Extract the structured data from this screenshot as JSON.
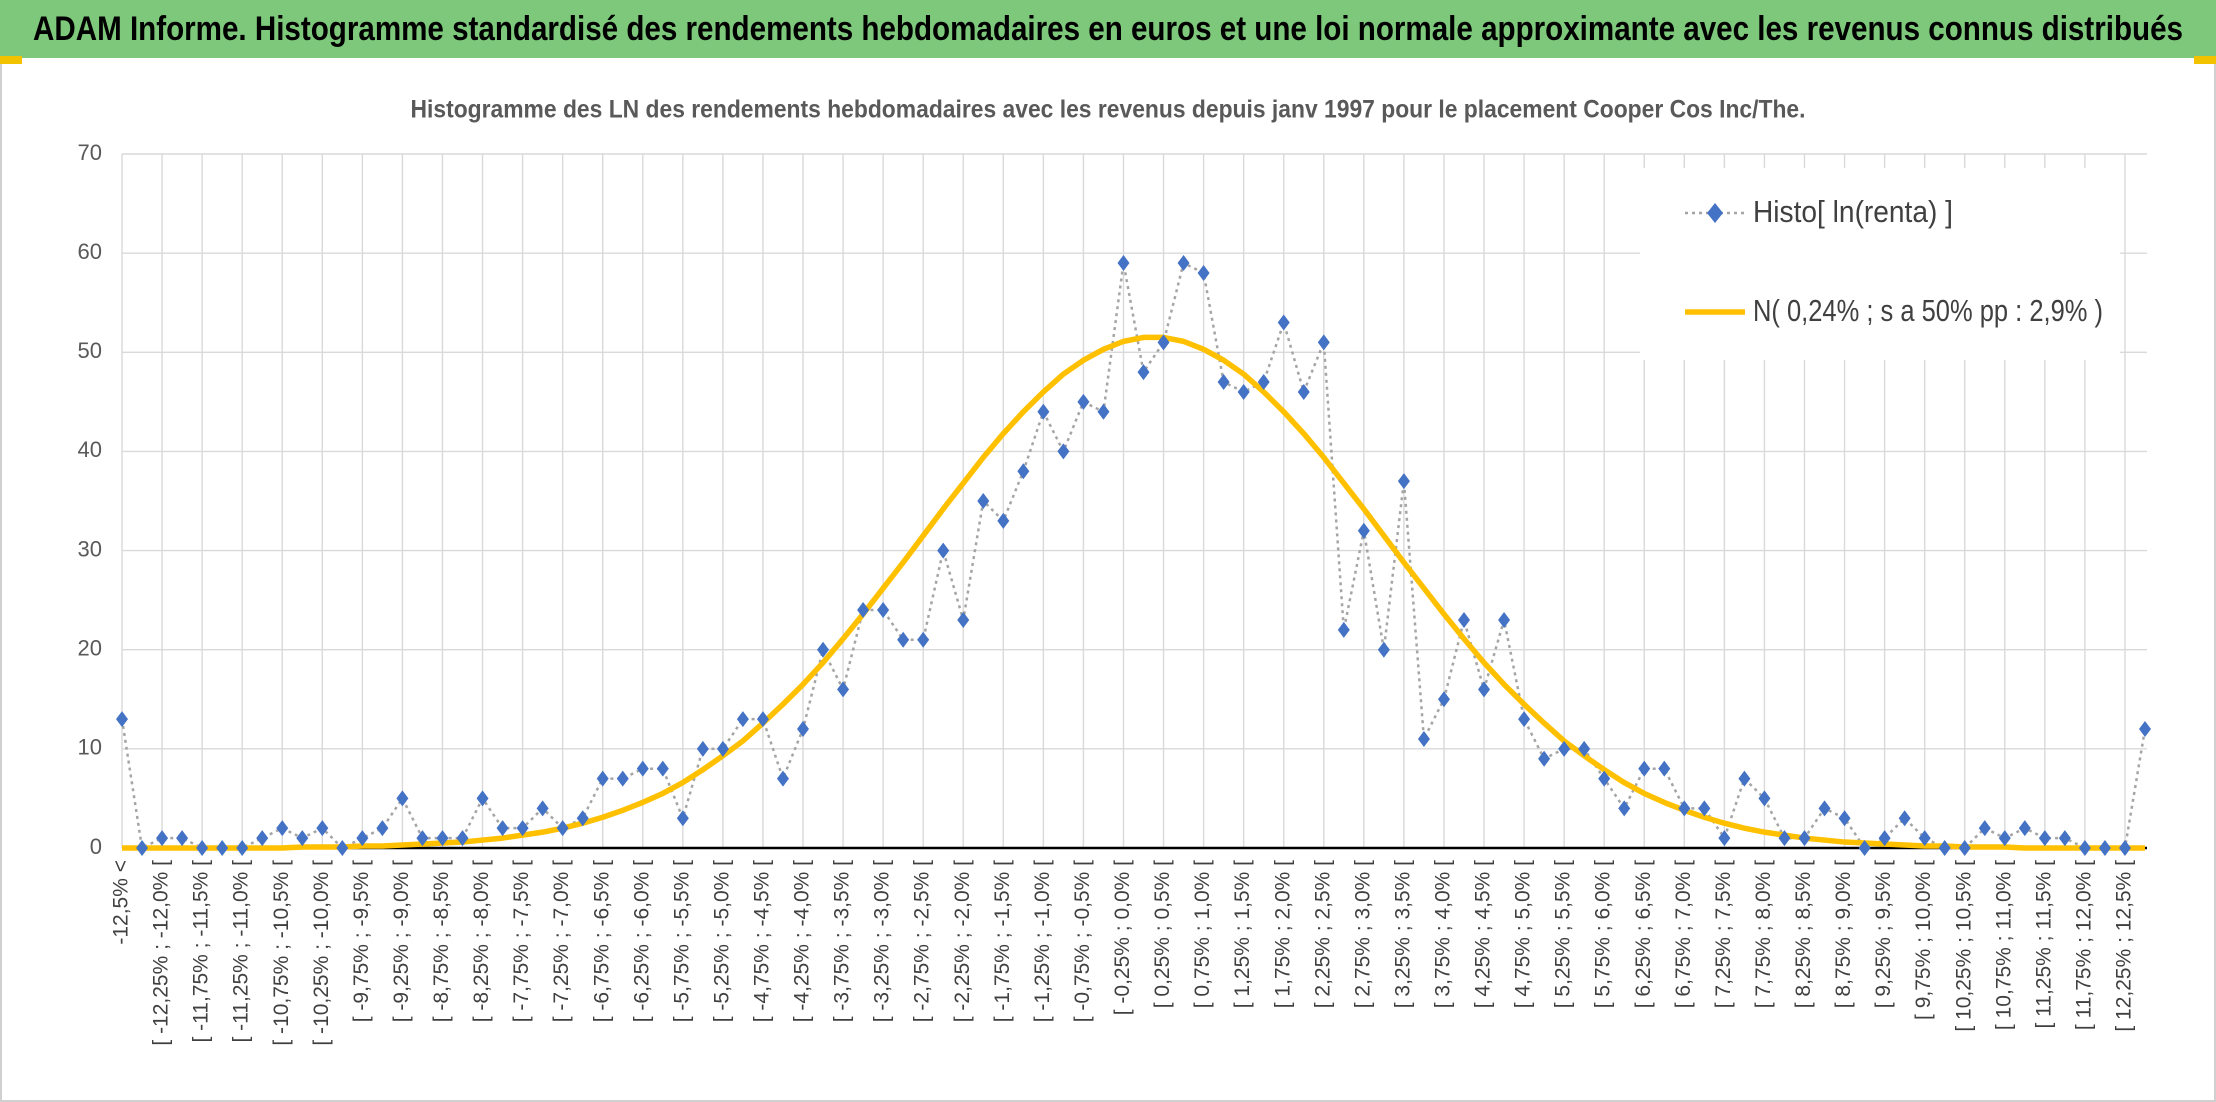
{
  "chart_data": {
    "type": "line",
    "title": "ADAM Informe. Histogramme standardisé des rendements hebdomadaires en euros et une loi normale approximante avec les revenus connus distribués",
    "subtitle": "Histogramme des LN des rendements hebdomadaires avec les revenus depuis janv 1997 pour le placement Cooper Cos Inc/The.",
    "categories": [
      "-12,5% <",
      null,
      "[ -12,25% ; -12,0% [",
      null,
      "[ -11,75% ; -11,5% [",
      null,
      "[ -11,25% ; -11,0% [",
      null,
      "[ -10,75% ; -10,5% [",
      null,
      "[ -10,25% ; -10,0% [",
      null,
      "[ -9,75% ; -9,5% [",
      null,
      "[ -9,25% ; -9,0% [",
      null,
      "[ -8,75% ; -8,5% [",
      null,
      "[ -8,25% ; -8,0% [",
      null,
      "[ -7,75% ; -7,5% [",
      null,
      "[ -7,25% ; -7,0% [",
      null,
      "[ -6,75% ; -6,5% [",
      null,
      "[ -6,25% ; -6,0% [",
      null,
      "[ -5,75% ; -5,5% [",
      null,
      "[ -5,25% ; -5,0% [",
      null,
      "[ -4,75% ; -4,5% [",
      null,
      "[ -4,25% ; -4,0% [",
      null,
      "[ -3,75% ; -3,5% [",
      null,
      "[ -3,25% ; -3,0% [",
      null,
      "[ -2,75% ; -2,5% [",
      null,
      "[ -2,25% ; -2,0% [",
      null,
      "[ -1,75% ; -1,5% [",
      null,
      "[ -1,25% ; -1,0% [",
      null,
      "[ -0,75% ; -0,5% [",
      null,
      "[ -0,25% ; 0,0% [",
      null,
      "[ 0,25% ; 0,5% [",
      null,
      "[ 0,75% ; 1,0% [",
      null,
      "[ 1,25% ; 1,5% [",
      null,
      "[ 1,75% ; 2,0% [",
      null,
      "[ 2,25% ; 2,5% [",
      null,
      "[ 2,75% ; 3,0% [",
      null,
      "[ 3,25% ; 3,5% [",
      null,
      "[ 3,75% ; 4,0% [",
      null,
      "[ 4,25% ; 4,5% [",
      null,
      "[ 4,75% ; 5,0% [",
      null,
      "[ 5,25% ; 5,5% [",
      null,
      "[ 5,75% ; 6,0% [",
      null,
      "[ 6,25% ; 6,5% [",
      null,
      "[ 6,75% ; 7,0% [",
      null,
      "[ 7,25% ; 7,5% [",
      null,
      "[ 7,75% ; 8,0% [",
      null,
      "[ 8,25% ; 8,5% [",
      null,
      "[ 8,75% ; 9,0% [",
      null,
      "[ 9,25% ; 9,5% [",
      null,
      "[ 9,75% ; 10,0% [",
      null,
      "[ 10,25% ; 10,5% [",
      null,
      "[ 10,75% ; 11,0% [",
      null,
      "[ 11,25% ; 11,5% [",
      null,
      "[ 11,75% ; 12,0% [",
      null,
      "[ 12,25% ; 12,5% [",
      null
    ],
    "series": [
      {
        "name": "Histo[ ln(renta) ]",
        "color": "#4472c4",
        "line_color": "#a5a5a5",
        "values": [
          13,
          0,
          1,
          1,
          0,
          0,
          0,
          1,
          2,
          1,
          2,
          0,
          1,
          2,
          5,
          1,
          1,
          1,
          5,
          2,
          2,
          4,
          2,
          3,
          7,
          7,
          8,
          8,
          3,
          10,
          10,
          13,
          13,
          7,
          12,
          20,
          16,
          24,
          24,
          21,
          21,
          30,
          23,
          35,
          33,
          38,
          44,
          40,
          45,
          44,
          59,
          48,
          51,
          59,
          58,
          47,
          46,
          47,
          53,
          46,
          51,
          22,
          32,
          20,
          37,
          11,
          15,
          23,
          16,
          23,
          13,
          9,
          10,
          10,
          7,
          4,
          8,
          8,
          4,
          4,
          1,
          7,
          5,
          1,
          1,
          4,
          3,
          0,
          1,
          3,
          1,
          0,
          0,
          2,
          1,
          2,
          1,
          1,
          0,
          0,
          0,
          12
        ]
      },
      {
        "name": "N( 0,24% ; s a 50% pp : 2,9% )",
        "color": "#ffc000",
        "values": [
          0,
          0,
          0,
          0,
          0,
          0,
          0,
          0,
          0,
          0.1,
          0.1,
          0.1,
          0.2,
          0.2,
          0.3,
          0.4,
          0.5,
          0.6,
          0.8,
          1.0,
          1.3,
          1.6,
          2.0,
          2.5,
          3.1,
          3.8,
          4.6,
          5.5,
          6.6,
          7.9,
          9.3,
          10.8,
          12.6,
          14.5,
          16.5,
          18.7,
          21.1,
          23.6,
          26.2,
          28.8,
          31.5,
          34.2,
          36.8,
          39.4,
          41.8,
          44.0,
          46.0,
          47.8,
          49.2,
          50.3,
          51.1,
          51.5,
          51.5,
          51.1,
          50.3,
          49.2,
          47.8,
          46.0,
          44.0,
          41.8,
          39.4,
          36.8,
          34.2,
          31.5,
          28.8,
          26.2,
          23.6,
          21.1,
          18.7,
          16.5,
          14.5,
          12.6,
          10.8,
          9.3,
          7.9,
          6.6,
          5.5,
          4.6,
          3.8,
          3.1,
          2.5,
          2.0,
          1.6,
          1.3,
          1.0,
          0.8,
          0.6,
          0.5,
          0.4,
          0.3,
          0.2,
          0.2,
          0.1,
          0.1,
          0.1,
          0,
          0,
          0,
          0,
          0,
          0,
          0
        ]
      }
    ],
    "ylim": [
      0,
      70
    ],
    "yticks": [
      0,
      10,
      20,
      30,
      40,
      50,
      60,
      70
    ],
    "grid": true
  }
}
